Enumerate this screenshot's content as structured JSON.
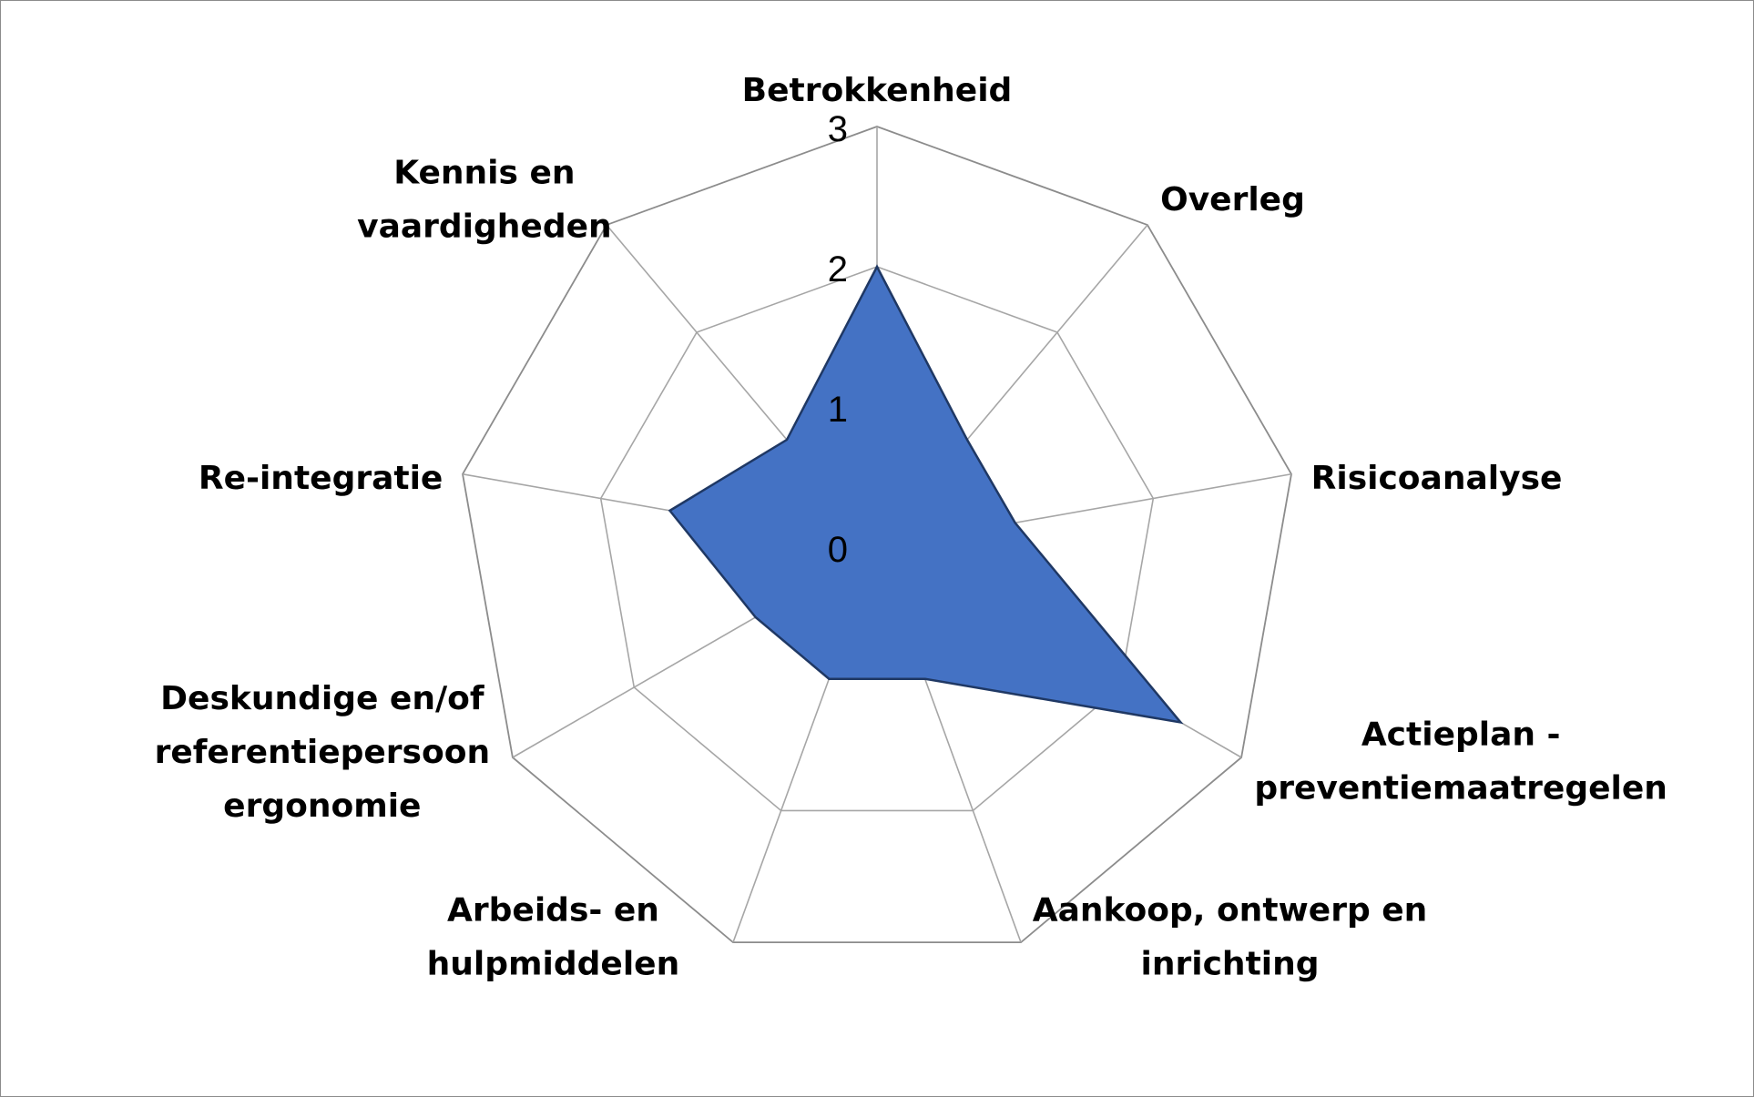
{
  "chart_data": {
    "type": "radar",
    "categories": [
      [
        "Betrokkenheid"
      ],
      [
        "Overleg"
      ],
      [
        "Risicoanalyse"
      ],
      [
        "Actieplan -",
        "preventiemaatregelen"
      ],
      [
        "Aankoop, ontwerp en",
        "inrichting"
      ],
      [
        "Arbeids- en",
        "hulpmiddelen"
      ],
      [
        "Deskundige en/of",
        "referentiepersoon",
        "ergonomie"
      ],
      [
        "Re-integratie"
      ],
      [
        "Kennis en",
        "vaardigheden"
      ]
    ],
    "series": [
      {
        "values": [
          2,
          1,
          1,
          2.5,
          1,
          1,
          1,
          1.5,
          1
        ],
        "color": "#4472c4",
        "line_color": "#1f3864"
      }
    ],
    "rlim": [
      0,
      3
    ],
    "ticks": [
      "0",
      "1",
      "2",
      "3"
    ],
    "grid": true,
    "legend": "none",
    "title": ""
  }
}
